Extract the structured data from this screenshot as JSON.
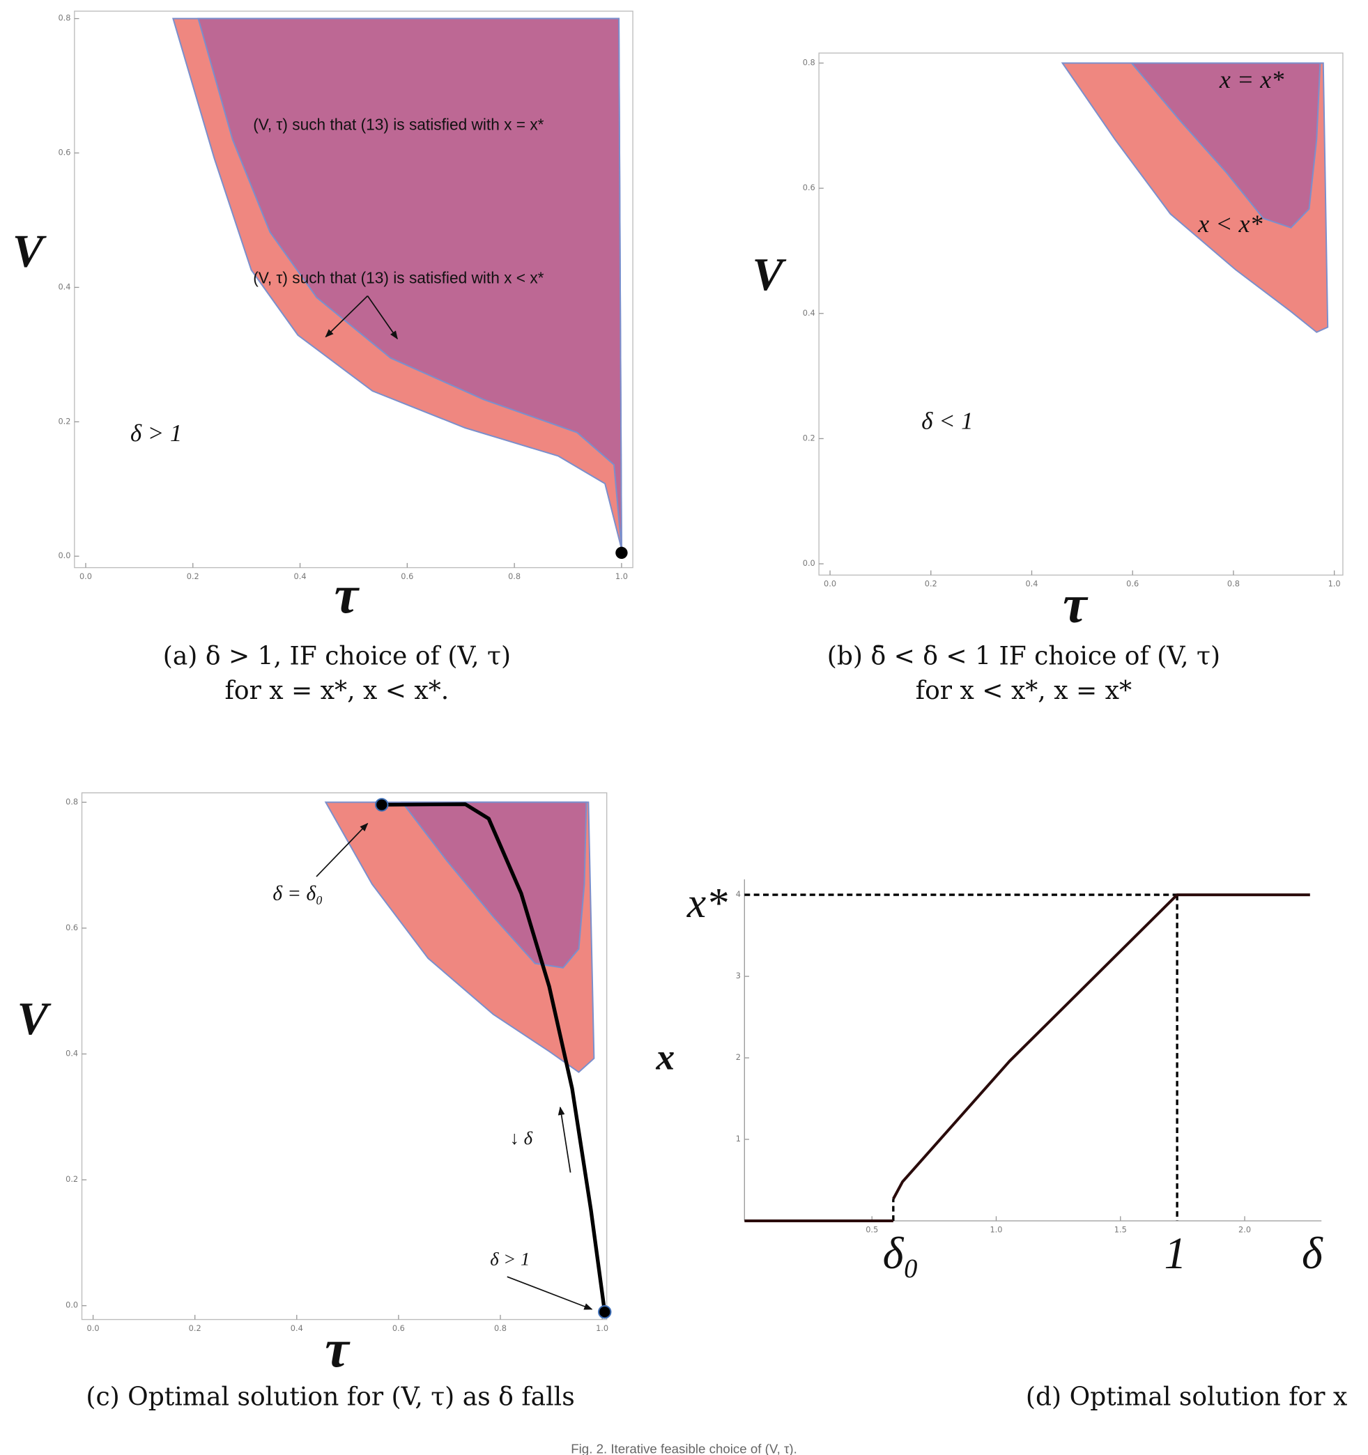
{
  "chart_data": [
    {
      "type": "area",
      "frame": true,
      "x_label": "τ",
      "y_label": "V",
      "xlim": [
        -0.021,
        1.021
      ],
      "ylim": [
        -0.017,
        0.811
      ],
      "xticks": [
        {
          "value": 0,
          "label": "0.0"
        },
        0.2,
        0.4,
        0.6,
        0.8,
        {
          "value": 1,
          "label": "1.0"
        }
      ],
      "yticks": [
        {
          "value": 0,
          "label": "0.0"
        },
        0.2,
        0.4,
        0.6,
        0.8
      ],
      "series": [
        {
          "kind": "region",
          "color": "#ef8780",
          "x": [
            0.163,
            0.24,
            0.309,
            0.396,
            0.535,
            0.708,
            0.882,
            0.969,
            1.0,
            0.995
          ],
          "values": [
            0.8,
            0.592,
            0.426,
            0.329,
            0.246,
            0.191,
            0.149,
            0.108,
            0.011,
            0.8
          ]
        },
        {
          "kind": "region",
          "color": "#bd6894",
          "x": [
            0.21,
            0.274,
            0.344,
            0.431,
            0.569,
            0.743,
            0.917,
            0.986,
            1.0,
            0.995
          ],
          "values": [
            0.8,
            0.62,
            0.482,
            0.385,
            0.295,
            0.233,
            0.184,
            0.136,
            0.011,
            0.8
          ]
        },
        {
          "kind": "points",
          "color": "#000000",
          "x": [
            1.0
          ],
          "values": [
            0.005
          ]
        }
      ],
      "annotations": [
        "(V, τ) such that (13) is satisfied with x = x*",
        "(V, τ) such that (13) is satisfied with x < x*",
        "δ > 1"
      ],
      "caption_lines": [
        "(a) δ > 1, IF choice of (V, τ)",
        "for x = x*, x < x*."
      ]
    },
    {
      "type": "area",
      "frame": true,
      "x_label": "τ",
      "y_label": "V",
      "xlim": [
        -0.022,
        1.017
      ],
      "ylim": [
        -0.018,
        0.816
      ],
      "xticks": [
        {
          "value": 0,
          "label": "0.0"
        },
        0.2,
        0.4,
        0.6,
        0.8,
        {
          "value": 1,
          "label": "1.0"
        }
      ],
      "yticks": [
        {
          "value": 0,
          "label": "0.0"
        },
        0.2,
        0.4,
        0.6,
        0.8
      ],
      "series": [
        {
          "kind": "region",
          "color": "#ef8780",
          "x": [
            0.461,
            0.565,
            0.675,
            0.804,
            0.914,
            0.965,
            0.987,
            0.978
          ],
          "values": [
            0.8,
            0.678,
            0.559,
            0.47,
            0.403,
            0.37,
            0.378,
            0.8
          ]
        },
        {
          "kind": "region",
          "color": "#bd6894",
          "x": [
            0.598,
            0.694,
            0.785,
            0.859,
            0.914,
            0.95,
            0.965,
            0.972
          ],
          "values": [
            0.8,
            0.708,
            0.626,
            0.552,
            0.537,
            0.567,
            0.678,
            0.8
          ]
        }
      ],
      "annotations": [
        "x = x*",
        "x < x*",
        "δ < 1"
      ],
      "caption_lines": [
        "(b) δ̄ < δ < 1 IF choice of (V, τ)",
        "for x < x*, x = x*"
      ]
    },
    {
      "type": "area",
      "frame": true,
      "x_label": "τ",
      "y_label": "V",
      "xlim": [
        -0.022,
        1.009
      ],
      "ylim": [
        -0.022,
        0.815
      ],
      "xticks": [
        {
          "value": 0,
          "label": "0.0"
        },
        0.2,
        0.4,
        0.6,
        0.8,
        {
          "value": 1,
          "label": "1.0"
        }
      ],
      "yticks": [
        {
          "value": 0,
          "label": "0.0"
        },
        0.2,
        0.4,
        0.6,
        0.8
      ],
      "series": [
        {
          "kind": "region",
          "color": "#ef8780",
          "x": [
            0.457,
            0.548,
            0.658,
            0.786,
            0.896,
            0.954,
            0.984,
            0.973
          ],
          "values": [
            0.8,
            0.67,
            0.552,
            0.463,
            0.404,
            0.371,
            0.393,
            0.8
          ]
        },
        {
          "kind": "region",
          "color": "#bd6894",
          "x": [
            0.607,
            0.695,
            0.786,
            0.868,
            0.923,
            0.954,
            0.965,
            0.969
          ],
          "values": [
            0.8,
            0.707,
            0.618,
            0.544,
            0.537,
            0.567,
            0.67,
            0.8
          ]
        },
        {
          "kind": "line",
          "color": "#000000",
          "x": [
            0.567,
            0.731,
            0.777,
            0.841,
            0.896,
            0.941,
            0.978,
            1.005
          ],
          "values": [
            0.796,
            0.797,
            0.774,
            0.655,
            0.507,
            0.345,
            0.152,
            -0.01
          ]
        },
        {
          "kind": "points",
          "color": "#000000",
          "x": [
            0.567,
            1.005
          ],
          "values": [
            0.796,
            -0.01
          ]
        }
      ],
      "annotations": [
        "δ = δ₀",
        "↓ δ",
        "δ > 1"
      ],
      "caption_lines": [
        "(c) Optimal solution for (V, τ) as δ falls"
      ]
    },
    {
      "type": "line",
      "frame": false,
      "y_label": "x",
      "xlim": [
        -0.013,
        2.309
      ],
      "ylim": [
        0,
        4.19
      ],
      "xticks": [
        0.5,
        {
          "value": 1,
          "label": "1.0"
        },
        1.5,
        {
          "value": 2,
          "label": "2.0"
        }
      ],
      "yticks": [
        1,
        2,
        3,
        4
      ],
      "series": [
        {
          "kind": "line",
          "color": "#000000",
          "dash": true,
          "x": [
            -0.013,
            1.728
          ],
          "values": [
            4,
            4
          ]
        },
        {
          "kind": "line",
          "color": "#000000",
          "dash": true,
          "x": [
            1.728,
            1.728
          ],
          "values": [
            4,
            0
          ]
        },
        {
          "kind": "line",
          "color": "#000000",
          "dash": true,
          "x": [
            0.586,
            0.586
          ],
          "values": [
            0,
            0.27
          ]
        },
        {
          "kind": "line",
          "color": "#2a0b0b",
          "x": [
            -0.013,
            0.586
          ],
          "values": [
            0,
            0
          ]
        },
        {
          "kind": "line",
          "color": "#2a0b0b",
          "x": [
            0.586,
            0.623,
            1.054,
            1.728,
            2.263
          ],
          "values": [
            0.27,
            0.48,
            1.96,
            4,
            4
          ]
        }
      ],
      "annotations": [
        "x*",
        "δ₀",
        "1",
        "δ"
      ],
      "caption_lines": [
        "(d) Optimal solution for x"
      ]
    }
  ],
  "figure_caption": "Fig. 2. Iterative feasible choice of (V, τ)."
}
